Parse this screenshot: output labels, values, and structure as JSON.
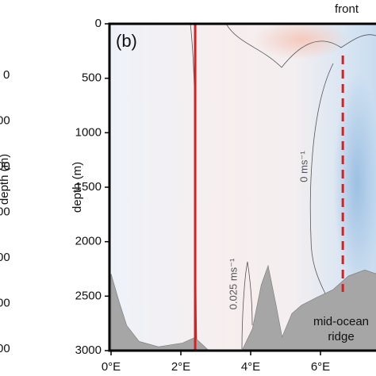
{
  "left_panel": {
    "tick_labels": [
      "0",
      "00",
      "00",
      "00",
      "00",
      "00",
      "00"
    ],
    "axis_label": "depth (m)"
  },
  "chart_data": {
    "type": "section",
    "panel_label": "(b)",
    "ylabel": "depth (m)",
    "xlim": [
      0,
      7.6
    ],
    "xticks": [
      {
        "value": 0,
        "label": "0°E"
      },
      {
        "value": 2,
        "label": "2°E"
      },
      {
        "value": 4,
        "label": "4°E"
      },
      {
        "value": 6,
        "label": "6°E"
      }
    ],
    "ylim": [
      0,
      3000
    ],
    "y_inverted": true,
    "yticks": [
      0,
      500,
      1000,
      1500,
      2000,
      2500,
      3000
    ],
    "bathymetry": {
      "color": "#a6a6a6",
      "x": [
        0,
        0.23,
        0.45,
        0.8,
        1.36,
        2.05,
        2.4,
        2.77,
        3.75,
        4.05,
        4.3,
        4.5,
        4.73,
        4.9,
        5.18,
        5.45,
        5.9,
        6.36,
        6.8,
        7.27,
        7.6
      ],
      "values": [
        2295,
        2550,
        2770,
        2915,
        2965,
        2930,
        2880,
        2990,
        3000,
        2800,
        2400,
        2220,
        2585,
        2875,
        2660,
        2585,
        2510,
        2440,
        2315,
        2260,
        2295
      ]
    },
    "vertical_lines": [
      {
        "x": 2.41,
        "color": "#d9201f",
        "style": "solid"
      },
      {
        "x": 6.64,
        "color": "#d9201f",
        "style": "dashed"
      }
    ],
    "annotations": {
      "front": "front",
      "contour_zero": "0 ms⁻¹",
      "contour_small": "0.025 ms⁻¹",
      "ridge": [
        "mid-ocean",
        "ridge"
      ]
    }
  }
}
